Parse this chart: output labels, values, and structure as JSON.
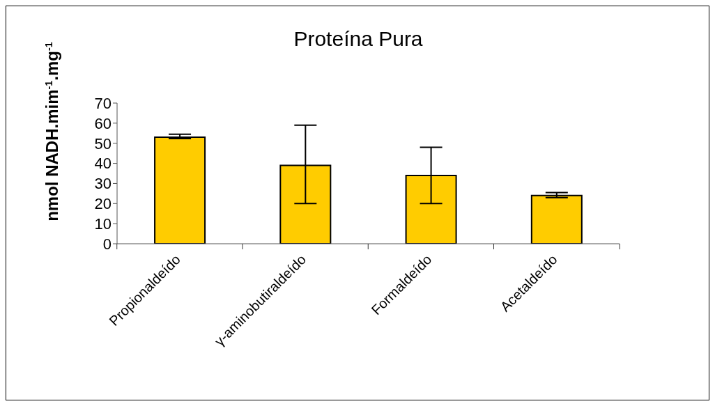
{
  "chart_data": {
    "type": "bar",
    "title": "Proteína Pura",
    "ylabel": "nmol NADH.mim$^{-1}$.mg$^{-1}$",
    "categories": [
      "Propionaldeído",
      "γ-aminobutiraldeído",
      "Formaldeído",
      "Acetaldeído"
    ],
    "values": [
      53,
      39,
      34,
      24
    ],
    "errors": [
      [
        52.3,
        54.5
      ],
      [
        20,
        59
      ],
      [
        20,
        48
      ],
      [
        23,
        25.5
      ]
    ],
    "color": "#ffcc00",
    "ylim": [
      0,
      70
    ],
    "yticks": [
      0,
      10,
      20,
      30,
      40,
      50,
      60,
      70
    ],
    "grid": false,
    "legend": false
  }
}
